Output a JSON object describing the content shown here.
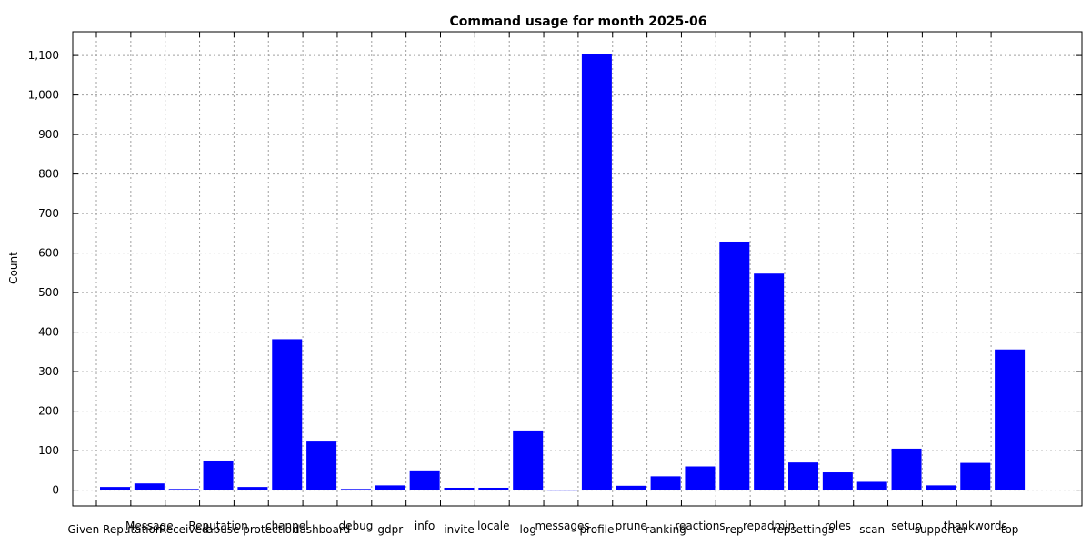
{
  "chart_data": {
    "type": "bar",
    "title": "Command usage for month 2025-06",
    "xlabel": "",
    "ylabel": "Count",
    "ylim": [
      -40,
      1160
    ],
    "yticks": [
      0,
      100,
      200,
      300,
      400,
      500,
      600,
      700,
      800,
      900,
      1000,
      1100
    ],
    "ytick_labels": [
      "0",
      "100",
      "200",
      "300",
      "400",
      "500",
      "600",
      "700",
      "800",
      "900",
      "1,000",
      "1,100"
    ],
    "grid": true,
    "bar_color": "#0000ff",
    "categories": [
      "Given Reputation",
      "Message",
      "Received",
      "Reputation",
      "abuse protection",
      "channel",
      "dashboard",
      "debug",
      "gdpr",
      "info",
      "invite",
      "locale",
      "log",
      "messages",
      "profile",
      "prune",
      "ranking",
      "reactions",
      "rep",
      "repadmin",
      "repsettings",
      "roles",
      "scan",
      "setup",
      "supporter",
      "thankwords",
      "top"
    ],
    "values": [
      8,
      17,
      3,
      75,
      8,
      382,
      123,
      3,
      12,
      50,
      6,
      6,
      151,
      1,
      1104,
      11,
      35,
      60,
      629,
      548,
      70,
      45,
      21,
      105,
      12,
      69,
      356
    ]
  }
}
